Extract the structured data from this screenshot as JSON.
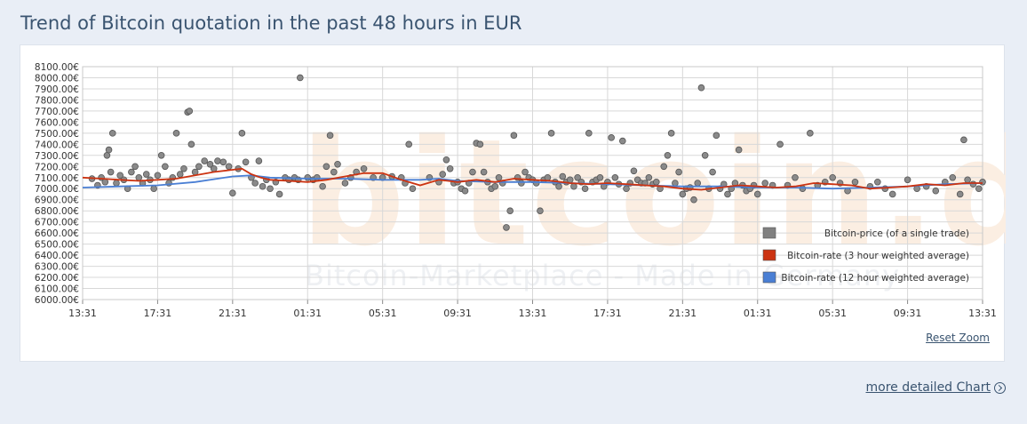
{
  "page": {
    "title": "Trend of Bitcoin quotation in the past 48 hours in EUR",
    "reset_zoom": "Reset Zoom",
    "more_link": "more detailed Chart"
  },
  "watermark": {
    "brand": "bitcoin.de",
    "tagline": "Bitcoin-Marketplace - Made in Germany"
  },
  "colors": {
    "price": "#808080",
    "rate3h": "#cc3311",
    "rate12h": "#4a7fd4",
    "grid": "#d8d8d8",
    "title": "#3a5470"
  },
  "chart_data": {
    "type": "line",
    "title": "",
    "xlabel": "",
    "ylabel": "",
    "grid": true,
    "legend_position": "bottom-right",
    "ylim": [
      6000,
      8100
    ],
    "yticks": [
      "8100.00€",
      "8000.00€",
      "7900.00€",
      "7800.00€",
      "7700.00€",
      "7600.00€",
      "7500.00€",
      "7400.00€",
      "7300.00€",
      "7200.00€",
      "7100.00€",
      "7000.00€",
      "6900.00€",
      "6800.00€",
      "6700.00€",
      "6600.00€",
      "6500.00€",
      "6400.00€",
      "6300.00€",
      "6200.00€",
      "6100.00€",
      "6000.00€"
    ],
    "xticks": [
      "13:31",
      "17:31",
      "21:31",
      "01:31",
      "05:31",
      "09:31",
      "13:31",
      "17:31",
      "21:31",
      "01:31",
      "05:31",
      "09:31",
      "13:31"
    ],
    "legend": [
      {
        "label": "Bitcoin-price (of a single trade)",
        "color": "#808080"
      },
      {
        "label": "Bitcoin-rate (3 hour weighted average)",
        "color": "#cc3311"
      },
      {
        "label": "Bitcoin-rate (12 hour weighted average)",
        "color": "#4a7fd4"
      }
    ],
    "series": [
      {
        "name": "Bitcoin-rate (3 hour weighted average)",
        "x_hours": [
          0,
          1,
          2,
          3,
          4,
          5,
          6,
          7,
          8,
          8.5,
          9,
          9.5,
          10,
          11,
          12,
          13,
          14,
          15,
          16,
          17,
          18,
          19,
          19.5,
          20,
          21,
          22,
          23,
          24,
          25,
          26,
          27,
          28,
          29,
          30,
          31,
          32,
          33,
          34,
          35,
          36,
          37,
          38,
          39,
          40,
          41,
          42,
          43,
          44,
          45,
          46,
          47,
          48
        ],
        "values": [
          7100,
          7090,
          7080,
          7070,
          7080,
          7090,
          7120,
          7150,
          7170,
          7180,
          7130,
          7100,
          7080,
          7070,
          7060,
          7080,
          7110,
          7140,
          7140,
          7080,
          7030,
          7080,
          7070,
          7060,
          7080,
          7060,
          7090,
          7080,
          7070,
          7050,
          7040,
          7050,
          7040,
          7030,
          7020,
          7000,
          6990,
          7010,
          7030,
          7020,
          7010,
          7020,
          7050,
          7040,
          7030,
          7000,
          7010,
          7020,
          7040,
          7030,
          7050,
          7050
        ]
      },
      {
        "name": "Bitcoin-rate (12 hour weighted average)",
        "x_hours": [
          0,
          2,
          4,
          6,
          8,
          9,
          10,
          12,
          14,
          16,
          18,
          19,
          20,
          22,
          24,
          26,
          28,
          30,
          32,
          34,
          36,
          38,
          40,
          42,
          44,
          46,
          48
        ],
        "values": [
          7010,
          7020,
          7030,
          7060,
          7110,
          7120,
          7100,
          7090,
          7090,
          7080,
          7080,
          7090,
          7070,
          7060,
          7060,
          7050,
          7040,
          7030,
          7020,
          7020,
          7010,
          7010,
          7000,
          7010,
          7020,
          7040,
          7050
        ]
      },
      {
        "name": "Bitcoin-price (of a single trade)",
        "type": "scatter",
        "points": [
          [
            0.5,
            7090
          ],
          [
            0.8,
            7030
          ],
          [
            1,
            7100
          ],
          [
            1.2,
            7060
          ],
          [
            1.3,
            7300
          ],
          [
            1.4,
            7350
          ],
          [
            1.6,
            7500
          ],
          [
            1.5,
            7150
          ],
          [
            1.8,
            7050
          ],
          [
            2,
            7120
          ],
          [
            2.2,
            7080
          ],
          [
            2.4,
            7000
          ],
          [
            2.6,
            7150
          ],
          [
            2.8,
            7200
          ],
          [
            3,
            7100
          ],
          [
            3.2,
            7050
          ],
          [
            3.4,
            7130
          ],
          [
            3.6,
            7080
          ],
          [
            3.8,
            7000
          ],
          [
            4,
            7120
          ],
          [
            4.2,
            7300
          ],
          [
            4.4,
            7200
          ],
          [
            4.6,
            7050
          ],
          [
            4.8,
            7100
          ],
          [
            5,
            7500
          ],
          [
            5.2,
            7130
          ],
          [
            5.4,
            7180
          ],
          [
            5.6,
            7690
          ],
          [
            5.7,
            7700
          ],
          [
            5.8,
            7400
          ],
          [
            6,
            7150
          ],
          [
            6.2,
            7200
          ],
          [
            6.5,
            7250
          ],
          [
            6.8,
            7220
          ],
          [
            7,
            7180
          ],
          [
            7.2,
            7250
          ],
          [
            7.5,
            7240
          ],
          [
            7.8,
            7200
          ],
          [
            8,
            6960
          ],
          [
            8.3,
            7180
          ],
          [
            8.5,
            7500
          ],
          [
            8.7,
            7240
          ],
          [
            9,
            7100
          ],
          [
            9.2,
            7050
          ],
          [
            9.4,
            7250
          ],
          [
            9.6,
            7020
          ],
          [
            9.8,
            7080
          ],
          [
            10,
            7000
          ],
          [
            10.3,
            7060
          ],
          [
            10.5,
            6950
          ],
          [
            10.8,
            7100
          ],
          [
            11,
            7080
          ],
          [
            11.3,
            7100
          ],
          [
            11.5,
            7080
          ],
          [
            11.6,
            8000
          ],
          [
            12,
            7100
          ],
          [
            12.3,
            7080
          ],
          [
            12.5,
            7100
          ],
          [
            12.8,
            7020
          ],
          [
            13,
            7200
          ],
          [
            13.2,
            7480
          ],
          [
            13.4,
            7150
          ],
          [
            13.6,
            7220
          ],
          [
            14,
            7050
          ],
          [
            14.3,
            7100
          ],
          [
            14.6,
            7150
          ],
          [
            15,
            7180
          ],
          [
            15.5,
            7100
          ],
          [
            16,
            7100
          ],
          [
            16.5,
            7110
          ],
          [
            17,
            7100
          ],
          [
            17.2,
            7050
          ],
          [
            17.4,
            7400
          ],
          [
            17.6,
            7000
          ],
          [
            18.5,
            7100
          ],
          [
            19,
            7060
          ],
          [
            19.2,
            7130
          ],
          [
            19.4,
            7260
          ],
          [
            19.6,
            7180
          ],
          [
            19.8,
            7050
          ],
          [
            20,
            7060
          ],
          [
            20.2,
            7000
          ],
          [
            20.4,
            6980
          ],
          [
            20.6,
            7050
          ],
          [
            20.8,
            7150
          ],
          [
            21,
            7410
          ],
          [
            21.2,
            7400
          ],
          [
            21.4,
            7150
          ],
          [
            21.6,
            7060
          ],
          [
            21.8,
            7000
          ],
          [
            22,
            7020
          ],
          [
            22.2,
            7100
          ],
          [
            22.4,
            7050
          ],
          [
            22.6,
            6650
          ],
          [
            22.8,
            6800
          ],
          [
            23,
            7480
          ],
          [
            23.2,
            7100
          ],
          [
            23.4,
            7050
          ],
          [
            23.6,
            7150
          ],
          [
            23.8,
            7100
          ],
          [
            24,
            7080
          ],
          [
            24.2,
            7050
          ],
          [
            24.4,
            6800
          ],
          [
            24.6,
            7080
          ],
          [
            24.8,
            7100
          ],
          [
            25,
            7500
          ],
          [
            25.2,
            7060
          ],
          [
            25.4,
            7020
          ],
          [
            25.6,
            7110
          ],
          [
            25.8,
            7060
          ],
          [
            26,
            7080
          ],
          [
            26.2,
            7020
          ],
          [
            26.4,
            7100
          ],
          [
            26.6,
            7060
          ],
          [
            26.8,
            7000
          ],
          [
            27,
            7500
          ],
          [
            27.2,
            7060
          ],
          [
            27.4,
            7080
          ],
          [
            27.6,
            7100
          ],
          [
            27.8,
            7020
          ],
          [
            28,
            7060
          ],
          [
            28.2,
            7460
          ],
          [
            28.4,
            7100
          ],
          [
            28.6,
            7040
          ],
          [
            28.8,
            7430
          ],
          [
            29,
            7000
          ],
          [
            29.2,
            7050
          ],
          [
            29.4,
            7160
          ],
          [
            29.6,
            7080
          ],
          [
            29.8,
            7050
          ],
          [
            30,
            7050
          ],
          [
            30.2,
            7100
          ],
          [
            30.4,
            7040
          ],
          [
            30.6,
            7060
          ],
          [
            30.8,
            7000
          ],
          [
            31,
            7200
          ],
          [
            31.2,
            7300
          ],
          [
            31.4,
            7500
          ],
          [
            31.6,
            7050
          ],
          [
            31.8,
            7150
          ],
          [
            32,
            6950
          ],
          [
            32.2,
            7000
          ],
          [
            32.4,
            7010
          ],
          [
            32.6,
            6900
          ],
          [
            32.8,
            7050
          ],
          [
            33,
            7910
          ],
          [
            33.2,
            7300
          ],
          [
            33.4,
            7000
          ],
          [
            33.6,
            7150
          ],
          [
            33.8,
            7480
          ],
          [
            34,
            7000
          ],
          [
            34.2,
            7040
          ],
          [
            34.4,
            6950
          ],
          [
            34.6,
            7000
          ],
          [
            34.8,
            7050
          ],
          [
            35,
            7350
          ],
          [
            35.2,
            7030
          ],
          [
            35.4,
            6980
          ],
          [
            35.6,
            7000
          ],
          [
            35.8,
            7030
          ],
          [
            36,
            6950
          ],
          [
            36.4,
            7050
          ],
          [
            36.8,
            7030
          ],
          [
            37.2,
            7400
          ],
          [
            37.6,
            7030
          ],
          [
            38,
            7100
          ],
          [
            38.4,
            7000
          ],
          [
            38.8,
            7500
          ],
          [
            39.2,
            7030
          ],
          [
            39.6,
            7060
          ],
          [
            40,
            7100
          ],
          [
            40.4,
            7050
          ],
          [
            40.8,
            6980
          ],
          [
            41.2,
            7060
          ],
          [
            42,
            7020
          ],
          [
            42.4,
            7060
          ],
          [
            42.8,
            7000
          ],
          [
            43.2,
            6950
          ],
          [
            44,
            7080
          ],
          [
            44.5,
            7000
          ],
          [
            45,
            7020
          ],
          [
            45.5,
            6980
          ],
          [
            46,
            7060
          ],
          [
            46.4,
            7100
          ],
          [
            46.8,
            6950
          ],
          [
            47,
            7440
          ],
          [
            47.2,
            7080
          ],
          [
            47.5,
            7040
          ],
          [
            47.8,
            7000
          ],
          [
            48,
            7060
          ]
        ]
      }
    ]
  }
}
